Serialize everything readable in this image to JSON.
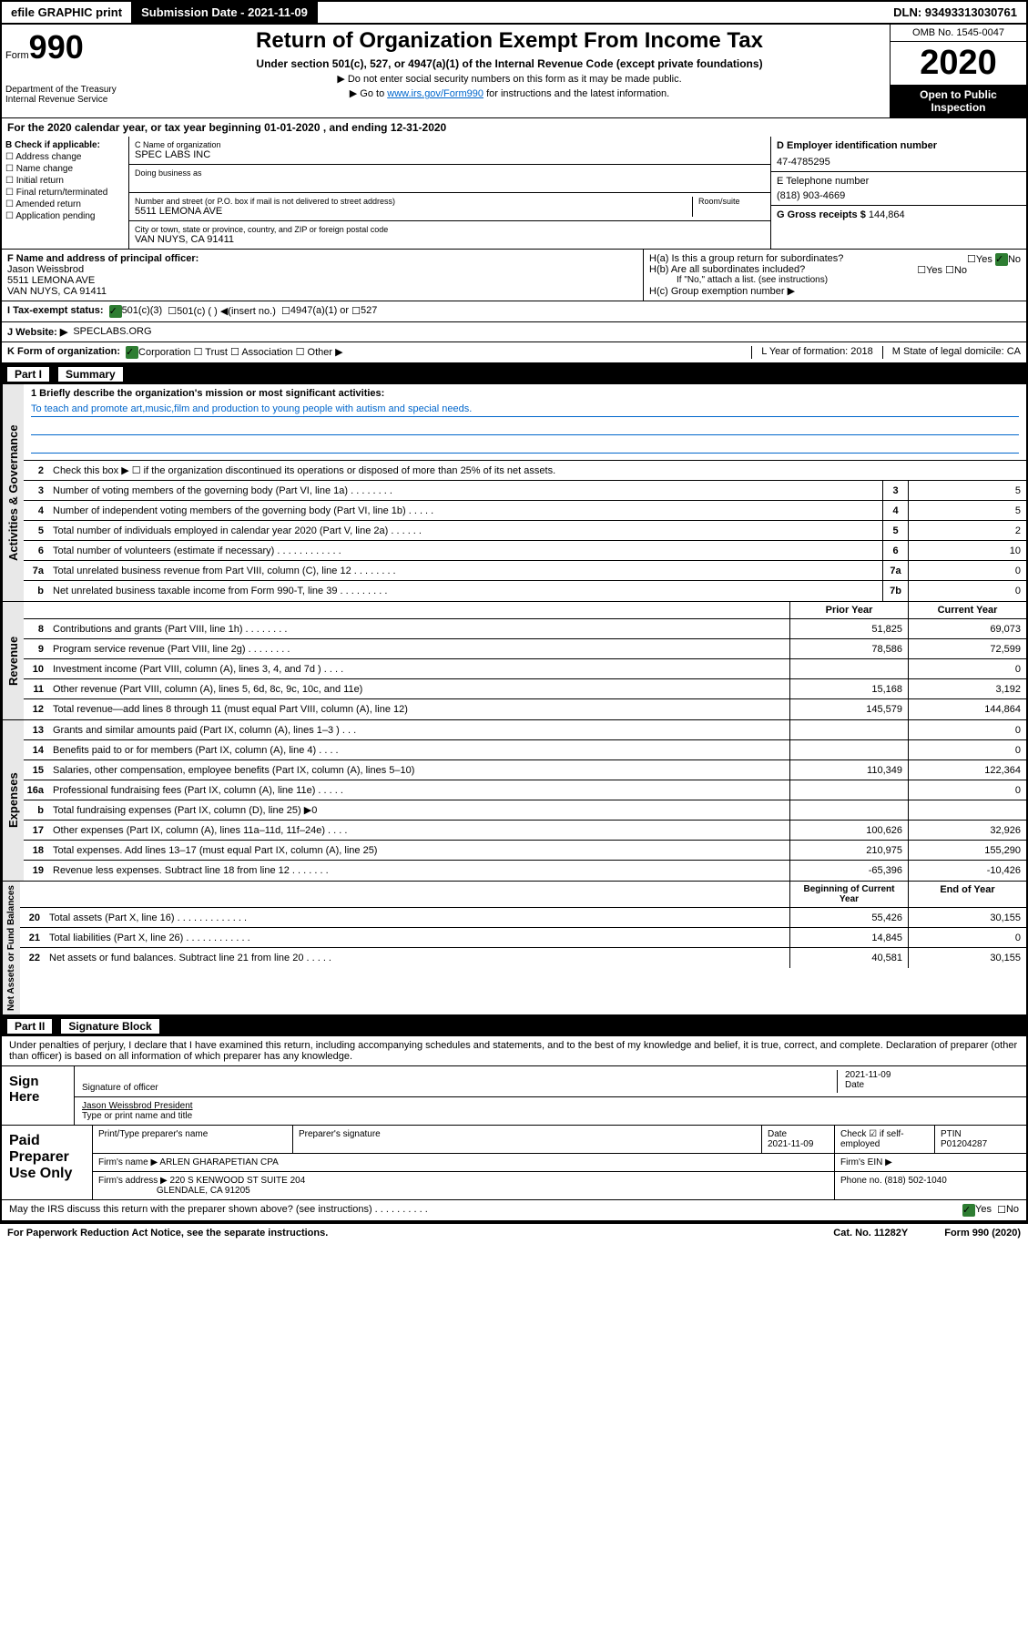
{
  "topbar": {
    "efile": "efile GRAPHIC print",
    "subdate_label": "Submission Date - 2021-11-09",
    "dln": "DLN: 93493313030761"
  },
  "header": {
    "form": "Form",
    "form_num": "990",
    "title": "Return of Organization Exempt From Income Tax",
    "subtitle": "Under section 501(c), 527, or 4947(a)(1) of the Internal Revenue Code (except private foundations)",
    "note1": "▶ Do not enter social security numbers on this form as it may be made public.",
    "note2_pre": "▶ Go to ",
    "note2_link": "www.irs.gov/Form990",
    "note2_post": " for instructions and the latest information.",
    "omb": "OMB No. 1545-0047",
    "year": "2020",
    "open": "Open to Public Inspection",
    "dept": "Department of the Treasury Internal Revenue Service"
  },
  "period": "For the 2020 calendar year, or tax year beginning 01-01-2020   , and ending 12-31-2020",
  "boxB": {
    "label": "B Check if applicable:",
    "opts": [
      "☐ Address change",
      "☐ Name change",
      "☐ Initial return",
      "☐ Final return/terminated",
      "☐ Amended return",
      "☐ Application pending"
    ]
  },
  "boxC": {
    "name_label": "C Name of organization",
    "name": "SPEC LABS INC",
    "dba_label": "Doing business as",
    "addr_label": "Number and street (or P.O. box if mail is not delivered to street address)",
    "room_label": "Room/suite",
    "addr": "5511 LEMONA AVE",
    "city_label": "City or town, state or province, country, and ZIP or foreign postal code",
    "city": "VAN NUYS, CA  91411"
  },
  "boxD": {
    "ein_label": "D Employer identification number",
    "ein": "47-4785295",
    "phone_label": "E Telephone number",
    "phone": "(818) 903-4669",
    "gross_label": "G Gross receipts $",
    "gross": "144,864"
  },
  "boxF": {
    "label": "F  Name and address of principal officer:",
    "name": "Jason Weissbrod",
    "addr1": "5511 LEMONA AVE",
    "addr2": "VAN NUYS, CA  91411"
  },
  "boxH": {
    "ha": "H(a)  Is this a group return for subordinates?",
    "hb": "H(b)  Are all subordinates included?",
    "hb_note": "If \"No,\" attach a list. (see instructions)",
    "hc": "H(c)  Group exemption number ▶",
    "yes": "Yes",
    "no": "No"
  },
  "boxI": {
    "label": "I    Tax-exempt status:",
    "opt1": "501(c)(3)",
    "opt2": "501(c) (  ) ◀(insert no.)",
    "opt3": "4947(a)(1) or",
    "opt4": "527"
  },
  "boxJ": {
    "label": "J   Website: ▶",
    "val": "SPECLABS.ORG"
  },
  "boxK": {
    "label": "K Form of organization:",
    "opts": "Corporation  ☐ Trust  ☐ Association  ☐ Other ▶",
    "l_label": "L Year of formation: 2018",
    "m_label": "M State of legal domicile: CA"
  },
  "part1": {
    "num": "Part I",
    "title": "Summary",
    "l1": "1  Briefly describe the organization's mission or most significant activities:",
    "l1_text": "To teach and promote art,music,film and production to young people with autism and special needs.",
    "l2": "Check this box ▶ ☐  if the organization discontinued its operations or disposed of more than 25% of its net assets.",
    "rows": [
      {
        "n": "3",
        "d": "Number of voting members of the governing body (Part VI, line 1a)  .   .   .   .   .   .   .   .",
        "b": "3",
        "v": "5"
      },
      {
        "n": "4",
        "d": "Number of independent voting members of the governing body (Part VI, line 1b)  .   .   .   .   .",
        "b": "4",
        "v": "5"
      },
      {
        "n": "5",
        "d": "Total number of individuals employed in calendar year 2020 (Part V, line 2a)  .   .   .   .   .   .",
        "b": "5",
        "v": "2"
      },
      {
        "n": "6",
        "d": "Total number of volunteers (estimate if necessary)  .   .   .   .   .   .   .   .   .   .   .   .",
        "b": "6",
        "v": "10"
      },
      {
        "n": "7a",
        "d": "Total unrelated business revenue from Part VIII, column (C), line 12  .   .   .   .   .   .   .   .",
        "b": "7a",
        "v": "0"
      },
      {
        "n": "b",
        "d": "Net unrelated business taxable income from Form 990-T, line 39  .   .   .   .   .   .   .   .   .",
        "b": "7b",
        "v": "0"
      }
    ],
    "col_prior": "Prior Year",
    "col_current": "Current Year",
    "revenue": [
      {
        "n": "8",
        "d": "Contributions and grants (Part VIII, line 1h)  .   .   .   .   .   .   .   .",
        "p": "51,825",
        "c": "69,073"
      },
      {
        "n": "9",
        "d": "Program service revenue (Part VIII, line 2g)  .   .   .   .   .   .   .   .",
        "p": "78,586",
        "c": "72,599"
      },
      {
        "n": "10",
        "d": "Investment income (Part VIII, column (A), lines 3, 4, and 7d )  .   .   .   .",
        "p": "",
        "c": "0"
      },
      {
        "n": "11",
        "d": "Other revenue (Part VIII, column (A), lines 5, 6d, 8c, 9c, 10c, and 11e)",
        "p": "15,168",
        "c": "3,192"
      },
      {
        "n": "12",
        "d": "Total revenue—add lines 8 through 11 (must equal Part VIII, column (A), line 12)",
        "p": "145,579",
        "c": "144,864"
      }
    ],
    "expenses": [
      {
        "n": "13",
        "d": "Grants and similar amounts paid (Part IX, column (A), lines 1–3 )  .   .   .",
        "p": "",
        "c": "0"
      },
      {
        "n": "14",
        "d": "Benefits paid to or for members (Part IX, column (A), line 4)  .   .   .   .",
        "p": "",
        "c": "0"
      },
      {
        "n": "15",
        "d": "Salaries, other compensation, employee benefits (Part IX, column (A), lines 5–10)",
        "p": "110,349",
        "c": "122,364"
      },
      {
        "n": "16a",
        "d": "Professional fundraising fees (Part IX, column (A), line 11e)  .   .   .   .   .",
        "p": "",
        "c": "0"
      },
      {
        "n": "b",
        "d": "Total fundraising expenses (Part IX, column (D), line 25) ▶0",
        "p": "",
        "c": ""
      },
      {
        "n": "17",
        "d": "Other expenses (Part IX, column (A), lines 11a–11d, 11f–24e)  .   .   .   .",
        "p": "100,626",
        "c": "32,926"
      },
      {
        "n": "18",
        "d": "Total expenses. Add lines 13–17 (must equal Part IX, column (A), line 25)",
        "p": "210,975",
        "c": "155,290"
      },
      {
        "n": "19",
        "d": "Revenue less expenses. Subtract line 18 from line 12  .   .   .   .   .   .   .",
        "p": "-65,396",
        "c": "-10,426"
      }
    ],
    "col_begin": "Beginning of Current Year",
    "col_end": "End of Year",
    "netassets": [
      {
        "n": "20",
        "d": "Total assets (Part X, line 16)  .   .   .   .   .   .   .   .   .   .   .   .   .",
        "p": "55,426",
        "c": "30,155"
      },
      {
        "n": "21",
        "d": "Total liabilities (Part X, line 26)  .   .   .   .   .   .   .   .   .   .   .   .",
        "p": "14,845",
        "c": "0"
      },
      {
        "n": "22",
        "d": "Net assets or fund balances. Subtract line 21 from line 20  .   .   .   .   .",
        "p": "40,581",
        "c": "30,155"
      }
    ],
    "side_gov": "Activities & Governance",
    "side_rev": "Revenue",
    "side_exp": "Expenses",
    "side_net": "Net Assets or Fund Balances"
  },
  "part2": {
    "num": "Part II",
    "title": "Signature Block",
    "disclaimer": "Under penalties of perjury, I declare that I have examined this return, including accompanying schedules and statements, and to the best of my knowledge and belief, it is true, correct, and complete. Declaration of preparer (other than officer) is based on all information of which preparer has any knowledge.",
    "sign_here": "Sign Here",
    "sig_officer": "Signature of officer",
    "date": "2021-11-09",
    "date_label": "Date",
    "officer_name": "Jason Weissbrod  President",
    "type_label": "Type or print name and title",
    "paid_label": "Paid Preparer Use Only",
    "prep_name_label": "Print/Type preparer's name",
    "prep_sig_label": "Preparer's signature",
    "prep_date": "2021-11-09",
    "check_self": "Check ☑ if self-employed",
    "ptin_label": "PTIN",
    "ptin": "P01204287",
    "firm_name_label": "Firm's name    ▶",
    "firm_name": "ARLEN GHARAPETIAN CPA",
    "firm_ein_label": "Firm's EIN ▶",
    "firm_addr_label": "Firm's address ▶",
    "firm_addr": "220 S KENWOOD ST SUITE 204",
    "firm_city": "GLENDALE, CA  91205",
    "phone_label": "Phone no. (818) 502-1040",
    "discuss": "May the IRS discuss this return with the preparer shown above? (see instructions)  .   .   .   .   .   .   .   .   .   .",
    "yes": "Yes",
    "no": "No"
  },
  "footer": {
    "pra": "For Paperwork Reduction Act Notice, see the separate instructions.",
    "cat": "Cat. No. 11282Y",
    "form": "Form 990 (2020)"
  }
}
